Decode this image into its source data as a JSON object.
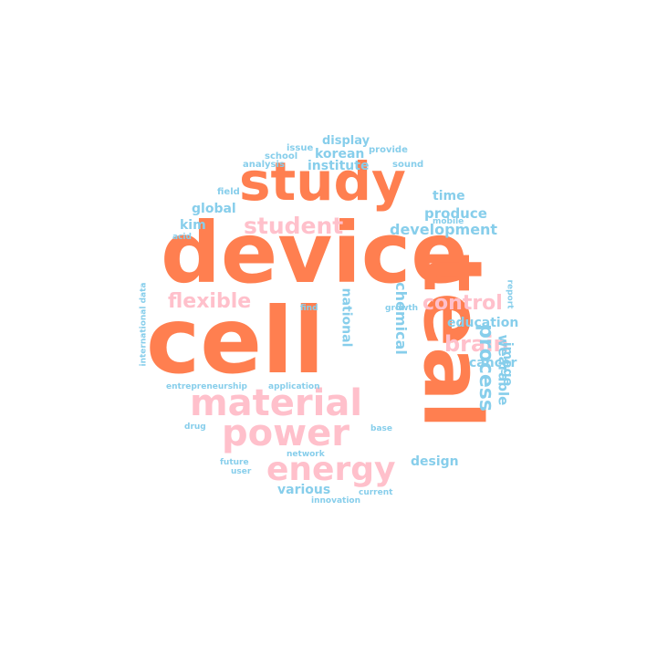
{
  "colors": {
    "orange": "#ff7f50",
    "pink": "#ffc0cb",
    "blue": "#87ceeb",
    "background": "#ffffff"
  },
  "words": [
    {
      "text": "device",
      "color": "orange"
    },
    {
      "text": "cell",
      "color": "orange"
    },
    {
      "text": "study",
      "color": "orange"
    },
    {
      "text": "teal",
      "color": "orange"
    },
    {
      "text": "material",
      "color": "pink"
    },
    {
      "text": "power",
      "color": "pink"
    },
    {
      "text": "energy",
      "color": "pink"
    },
    {
      "text": "student",
      "color": "pink"
    },
    {
      "text": "flexible",
      "color": "pink"
    },
    {
      "text": "control",
      "color": "pink"
    },
    {
      "text": "brain",
      "color": "pink"
    },
    {
      "text": "process",
      "color": "blue"
    },
    {
      "text": "chemical",
      "color": "blue"
    },
    {
      "text": "national",
      "color": "blue"
    },
    {
      "text": "wearable",
      "color": "blue"
    },
    {
      "text": "image",
      "color": "blue"
    },
    {
      "text": "education",
      "color": "blue"
    },
    {
      "text": "cancer",
      "color": "blue"
    },
    {
      "text": "development",
      "color": "blue"
    },
    {
      "text": "produce",
      "color": "blue"
    },
    {
      "text": "time",
      "color": "blue"
    },
    {
      "text": "global",
      "color": "blue"
    },
    {
      "text": "kim",
      "color": "blue"
    },
    {
      "text": "korean",
      "color": "blue"
    },
    {
      "text": "institute",
      "color": "blue"
    },
    {
      "text": "display",
      "color": "blue"
    },
    {
      "text": "various",
      "color": "blue"
    },
    {
      "text": "design",
      "color": "blue"
    },
    {
      "text": "issue",
      "color": "blue"
    },
    {
      "text": "provide",
      "color": "blue"
    },
    {
      "text": "school",
      "color": "blue"
    },
    {
      "text": "analysis",
      "color": "blue"
    },
    {
      "text": "sound",
      "color": "blue"
    },
    {
      "text": "field",
      "color": "blue"
    },
    {
      "text": "acid",
      "color": "blue"
    },
    {
      "text": "mobile",
      "color": "blue"
    },
    {
      "text": "international data",
      "color": "blue"
    },
    {
      "text": "find",
      "color": "blue"
    },
    {
      "text": "growth",
      "color": "blue"
    },
    {
      "text": "report",
      "color": "blue"
    },
    {
      "text": "entrepreneurship",
      "color": "blue"
    },
    {
      "text": "application",
      "color": "blue"
    },
    {
      "text": "drug",
      "color": "blue"
    },
    {
      "text": "base",
      "color": "blue"
    },
    {
      "text": "network",
      "color": "blue"
    },
    {
      "text": "future",
      "color": "blue"
    },
    {
      "text": "user",
      "color": "blue"
    },
    {
      "text": "current",
      "color": "blue"
    },
    {
      "text": "innovation",
      "color": "blue"
    }
  ]
}
